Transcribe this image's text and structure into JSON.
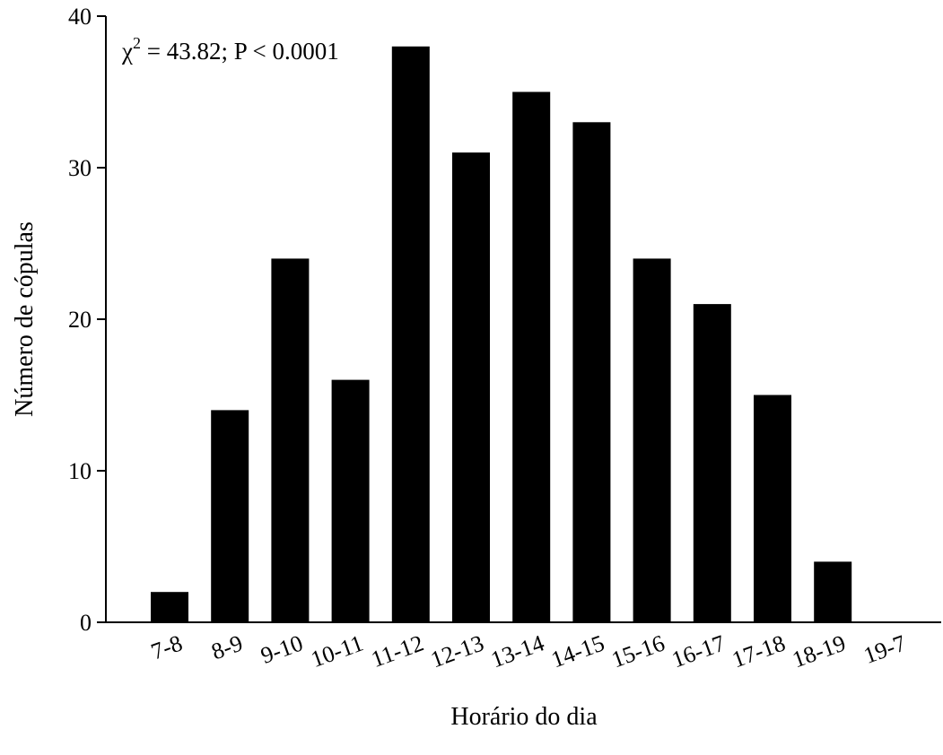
{
  "chart_data": {
    "type": "bar",
    "categories": [
      "7-8",
      "8-9",
      "9-10",
      "10-11",
      "11-12",
      "12-13",
      "13-14",
      "14-15",
      "15-16",
      "16-17",
      "17-18",
      "18-19",
      "19-7"
    ],
    "values": [
      2,
      14,
      24,
      16,
      38,
      31,
      35,
      33,
      24,
      21,
      15,
      4,
      0
    ],
    "xlabel": "Horário do dia",
    "ylabel": "Número de cópulas",
    "ylim": [
      0,
      40
    ],
    "yticks": [
      0,
      10,
      20,
      30,
      40
    ],
    "grid": false,
    "bar_color": "#000000",
    "annotation": {
      "chi_symbol": "χ",
      "exponent": "2",
      "text": " = 43.82; P < 0.0001"
    }
  }
}
